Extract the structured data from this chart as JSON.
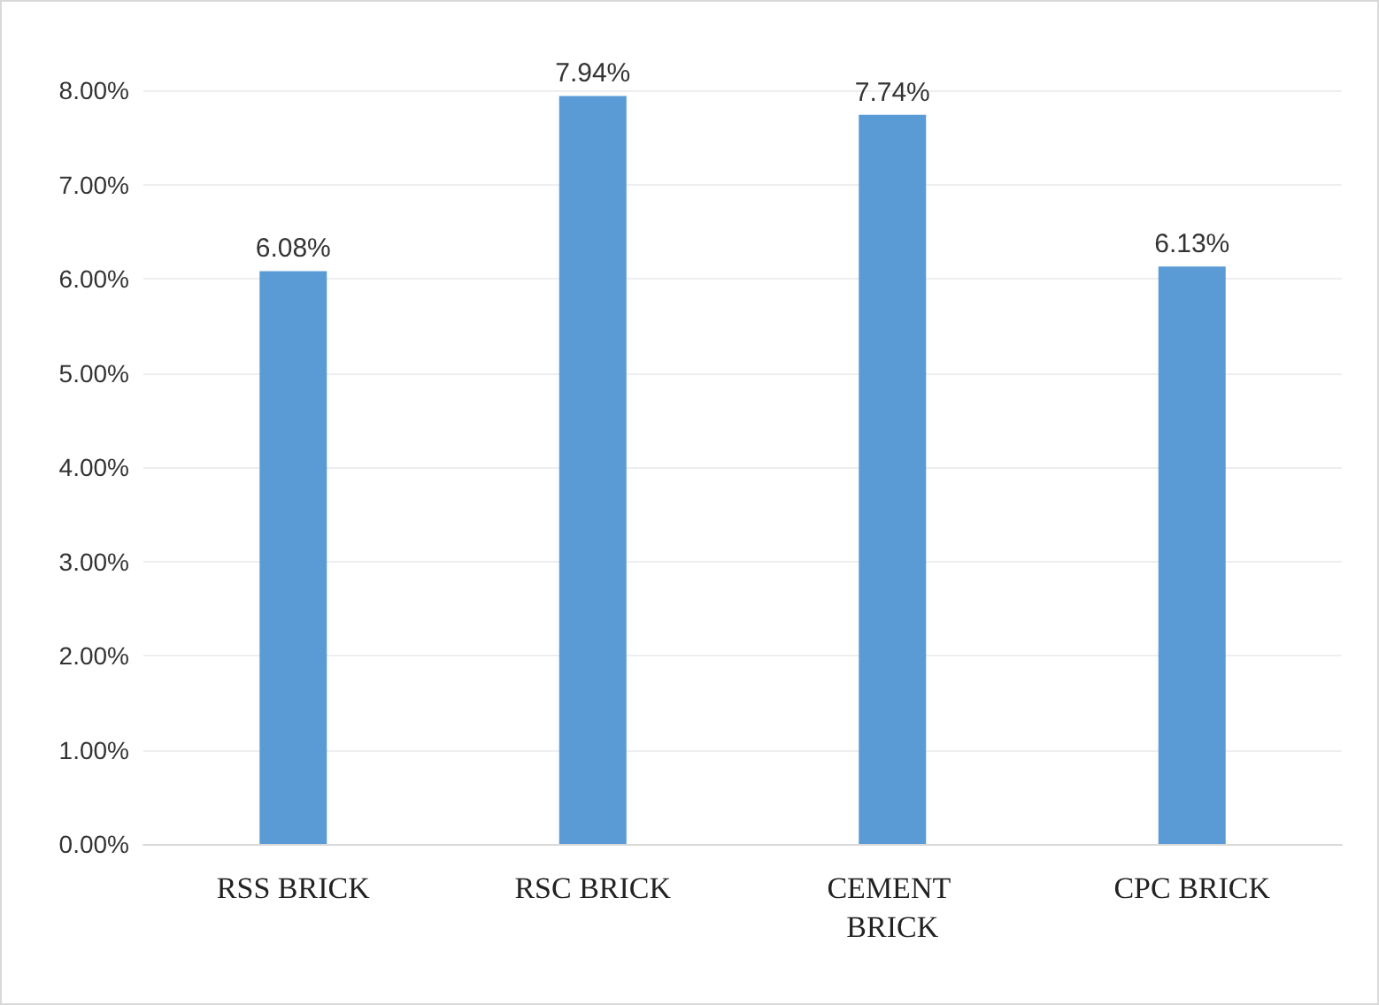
{
  "chart_data": {
    "type": "bar",
    "categories": [
      "RSS BRICK",
      "RSC BRICK",
      "CEMENT BRICK",
      "CPC BRICK"
    ],
    "values": [
      6.08,
      7.94,
      7.74,
      6.13
    ],
    "value_labels": [
      "6.08%",
      "7.94%",
      "7.74%",
      "6.13%"
    ],
    "color": "#5b9bd5",
    "ylim": [
      0,
      8
    ],
    "yticks": [
      {
        "value": 0,
        "label": "0.00%"
      },
      {
        "value": 1,
        "label": "1.00%"
      },
      {
        "value": 2,
        "label": "2.00%"
      },
      {
        "value": 3,
        "label": "3.00%"
      },
      {
        "value": 4,
        "label": "4.00%"
      },
      {
        "value": 5,
        "label": "5.00%"
      },
      {
        "value": 6,
        "label": "6.00%"
      },
      {
        "value": 7,
        "label": "7.00%"
      },
      {
        "value": 8,
        "label": "8.00%"
      }
    ],
    "grid": "y"
  }
}
